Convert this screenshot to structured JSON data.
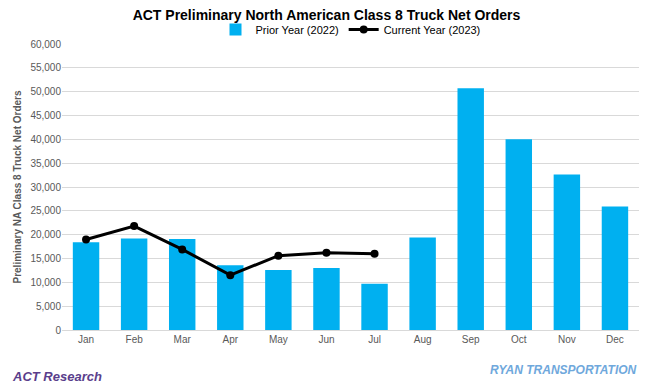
{
  "chart_data": {
    "type": "bar",
    "title": "ACT Preliminary North American Class 8 Truck Net Orders",
    "y_label": "Preliminary NA Class 8 Truck Net Orders",
    "categories": [
      "Jan",
      "Feb",
      "Mar",
      "Apr",
      "May",
      "Jun",
      "Jul",
      "Aug",
      "Sep",
      "Oct",
      "Nov",
      "Dec"
    ],
    "series": [
      {
        "name": "Prior Year (2022)",
        "type": "bar",
        "color": "#00b0f0",
        "values": [
          18400,
          19200,
          19100,
          13600,
          12600,
          13000,
          9700,
          19400,
          50700,
          40000,
          32600,
          25900
        ]
      },
      {
        "name": "Current Year (2023)",
        "type": "line",
        "color": "#000000",
        "marker": "circle",
        "line_style": "solid",
        "values": [
          19000,
          21800,
          16900,
          11500,
          15600,
          16200,
          16000,
          null,
          null,
          null,
          null,
          null
        ]
      }
    ],
    "ylim": [
      0,
      60000
    ],
    "yticks": [
      0,
      {
        "value": 5000,
        "label": "5,000"
      },
      {
        "value": 10000,
        "label": "10,000"
      },
      {
        "value": 15000,
        "label": "15,000"
      },
      {
        "value": 20000,
        "label": "20,000"
      },
      {
        "value": 25000,
        "label": "25,000"
      },
      {
        "value": 30000,
        "label": "30,000"
      },
      {
        "value": 35000,
        "label": "35,000"
      },
      {
        "value": 40000,
        "label": "40,000"
      },
      {
        "value": 45000,
        "label": "45,000"
      },
      {
        "value": 50000,
        "label": "50,000"
      },
      {
        "value": 55000,
        "label": "55,000"
      },
      {
        "value": 60000,
        "label": "60,000"
      }
    ],
    "grid": true,
    "legend": "top",
    "annotations": [
      "ACT Research",
      "RYAN TRANSPORTATION"
    ]
  }
}
